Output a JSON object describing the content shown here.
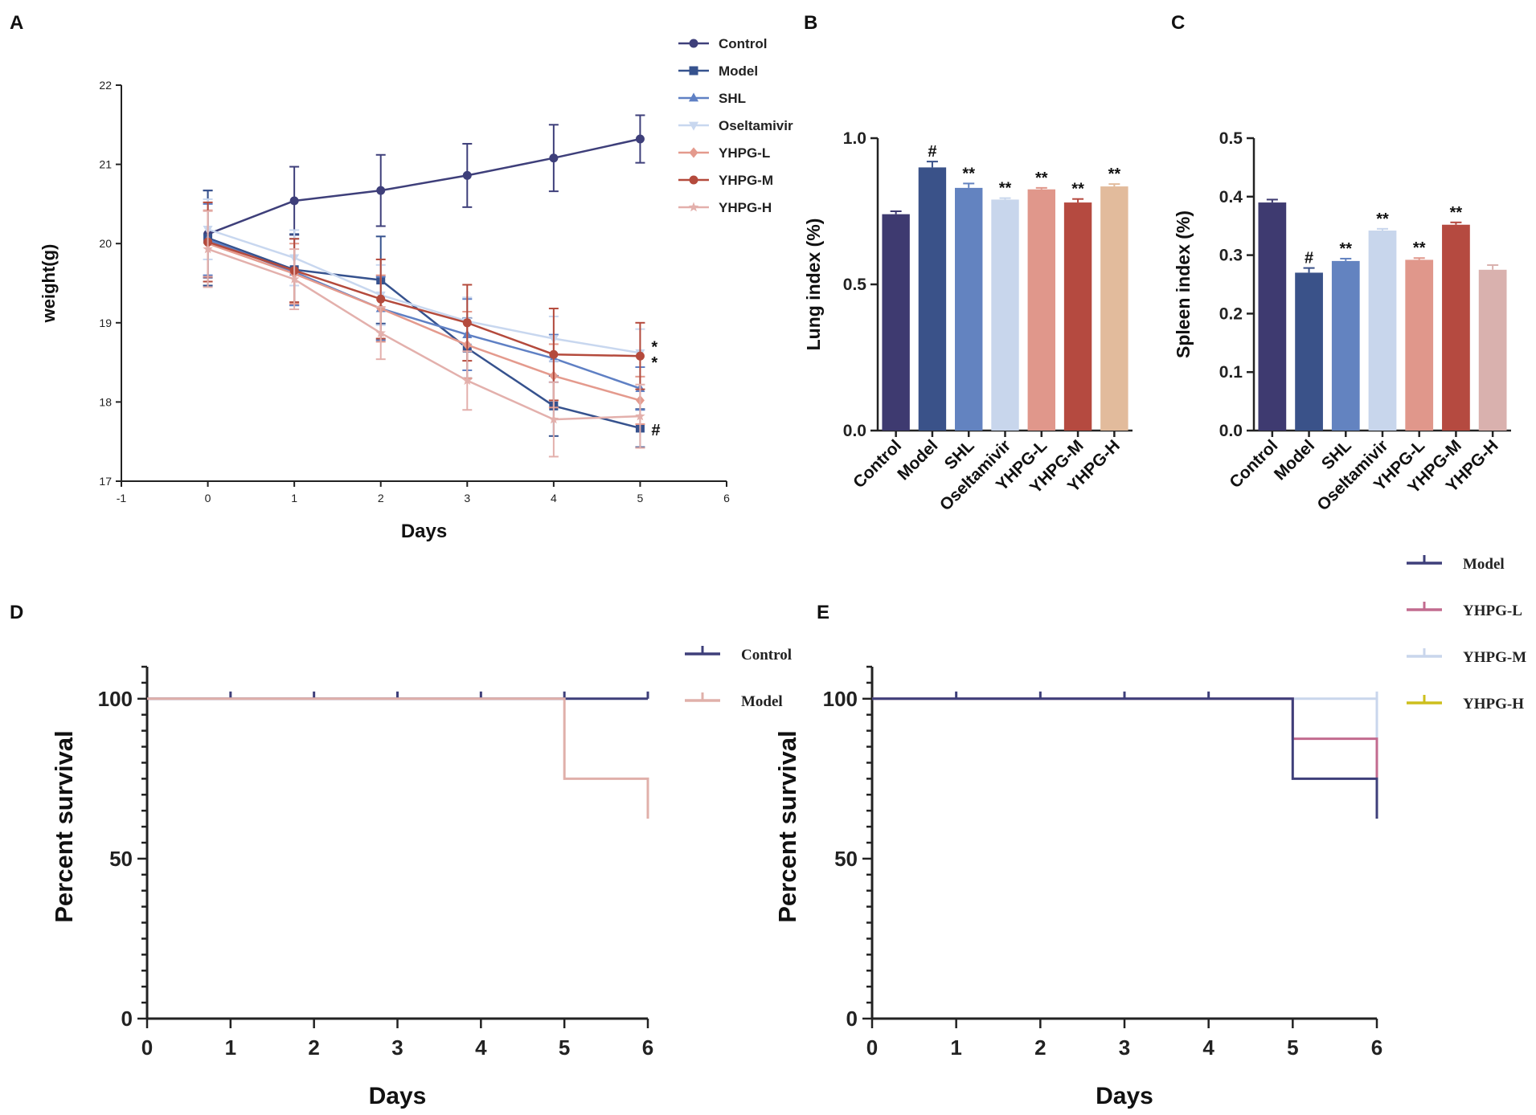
{
  "chart_data": [
    {
      "panel": "A",
      "type": "line",
      "title": "",
      "xlabel": "Days",
      "ylabel": "weight(g)",
      "xlim": [
        -1,
        6
      ],
      "ylim": [
        17,
        22
      ],
      "xticks": [
        "-1",
        "0",
        "1",
        "2",
        "3",
        "4",
        "5",
        "6"
      ],
      "yticks": [
        "17",
        "18",
        "19",
        "20",
        "21",
        "22"
      ],
      "x": [
        0,
        1,
        2,
        3,
        4,
        5
      ],
      "series": [
        {
          "name": "Control",
          "color": "#3e3f7a",
          "marker": "circle",
          "values": [
            20.12,
            20.54,
            20.67,
            20.86,
            21.08,
            21.32
          ],
          "errors": [
            0.55,
            0.43,
            0.45,
            0.4,
            0.42,
            0.3
          ]
        },
        {
          "name": "Model",
          "color": "#36528e",
          "marker": "square",
          "values": [
            20.07,
            19.67,
            19.54,
            18.68,
            17.95,
            17.67
          ],
          "errors": [
            0.6,
            0.45,
            0.55,
            0.38,
            0.38,
            0.24
          ]
        },
        {
          "name": "SHL",
          "color": "#5f80c4",
          "marker": "triangle",
          "values": [
            20.05,
            19.64,
            19.18,
            18.85,
            18.55,
            18.17
          ],
          "errors": [
            0.45,
            0.42,
            0.4,
            0.45,
            0.3,
            0.27
          ]
        },
        {
          "name": "Oseltamivir",
          "color": "#c8d7ef",
          "marker": "triangle-down",
          "values": [
            20.18,
            19.82,
            19.35,
            19.02,
            18.8,
            18.62
          ],
          "errors": [
            0.38,
            0.35,
            0.38,
            0.3,
            0.28,
            0.3
          ]
        },
        {
          "name": "YHPG-L",
          "color": "#e49a8d",
          "marker": "diamond",
          "values": [
            20.0,
            19.62,
            19.18,
            18.72,
            18.33,
            18.02
          ],
          "errors": [
            0.42,
            0.38,
            0.42,
            0.42,
            0.4,
            0.3
          ]
        },
        {
          "name": "YHPG-M",
          "color": "#b44a3c",
          "marker": "circle",
          "values": [
            20.02,
            19.66,
            19.3,
            19.0,
            18.6,
            18.58
          ],
          "errors": [
            0.5,
            0.4,
            0.5,
            0.48,
            0.58,
            0.42
          ]
        },
        {
          "name": "YHPG-H",
          "color": "#e3b0ac",
          "marker": "star",
          "values": [
            19.93,
            19.55,
            18.87,
            18.27,
            17.78,
            17.82
          ],
          "errors": [
            0.48,
            0.38,
            0.33,
            0.37,
            0.47,
            0.4
          ]
        }
      ],
      "annotations": [
        {
          "text": "*",
          "x": 5,
          "y": 18.72
        },
        {
          "text": "*",
          "x": 5,
          "y": 18.52
        },
        {
          "text": "#",
          "x": 5,
          "y": 17.67
        }
      ],
      "legend": "top-right"
    },
    {
      "panel": "B",
      "type": "bar",
      "ylabel": "Lung index (%)",
      "ylim": [
        0,
        1.0
      ],
      "yticks": [
        "0.0",
        "0.5",
        "1.0"
      ],
      "categories": [
        "Control",
        "Model",
        "SHL",
        "Oseltamivir",
        "YHPG-L",
        "YHPG-M",
        "YHPG-H"
      ],
      "values": [
        0.74,
        0.9,
        0.83,
        0.79,
        0.825,
        0.78,
        0.835
      ],
      "errors": [
        0.01,
        0.02,
        0.015,
        0.005,
        0.005,
        0.012,
        0.008
      ],
      "colors": [
        "#3e3a70",
        "#3a5289",
        "#6383c0",
        "#c8d6ec",
        "#e0978b",
        "#b54a40",
        "#e2bb9c"
      ],
      "labels": [
        "",
        "#",
        "**",
        "**",
        "**",
        "**",
        "**"
      ]
    },
    {
      "panel": "C",
      "type": "bar",
      "ylabel": "Spleen index (%)",
      "ylim": [
        0,
        0.5
      ],
      "yticks": [
        "0.0",
        "0.1",
        "0.2",
        "0.3",
        "0.4",
        "0.5"
      ],
      "categories": [
        "Control",
        "Model",
        "SHL",
        "Oseltamivir",
        "YHPG-L",
        "YHPG-M",
        "YHPG-H"
      ],
      "values": [
        0.39,
        0.27,
        0.29,
        0.342,
        0.292,
        0.352,
        0.275
      ],
      "errors": [
        0.005,
        0.008,
        0.004,
        0.003,
        0.003,
        0.004,
        0.008
      ],
      "colors": [
        "#3e3a70",
        "#3a5289",
        "#6383c0",
        "#c8d6ec",
        "#e0978b",
        "#b54a40",
        "#d9b1ae"
      ],
      "labels": [
        "",
        "#",
        "**",
        "**",
        "**",
        "**",
        ""
      ]
    },
    {
      "panel": "D",
      "type": "line",
      "subtype": "survival",
      "xlabel": "Days",
      "ylabel": "Percent survival",
      "xlim": [
        0,
        6
      ],
      "ylim": [
        0,
        110
      ],
      "xticks": [
        "0",
        "1",
        "2",
        "3",
        "4",
        "5",
        "6"
      ],
      "yticks": [
        "0",
        "50",
        "100"
      ],
      "series": [
        {
          "name": "Control",
          "color": "#3e3f7a",
          "steps": [
            [
              0,
              100
            ],
            [
              6,
              100
            ]
          ],
          "censor": [
            1,
            2,
            3,
            4,
            5,
            6
          ]
        },
        {
          "name": "Model",
          "color": "#e0b0aa",
          "steps": [
            [
              0,
              100
            ],
            [
              5,
              100
            ],
            [
              5,
              75
            ],
            [
              6,
              75
            ],
            [
              6,
              62.5
            ]
          ],
          "censor": []
        }
      ],
      "legend": "top-right"
    },
    {
      "panel": "E",
      "type": "line",
      "subtype": "survival",
      "xlabel": "Days",
      "ylabel": "Percent survival",
      "xlim": [
        0,
        6
      ],
      "ylim": [
        0,
        110
      ],
      "xticks": [
        "0",
        "1",
        "2",
        "3",
        "4",
        "5",
        "6"
      ],
      "yticks": [
        "0",
        "50",
        "100"
      ],
      "series": [
        {
          "name": "YHPG-M",
          "color": "#c9d6ec",
          "steps": [
            [
              0,
              100
            ],
            [
              6,
              100
            ],
            [
              6,
              87.5
            ]
          ],
          "censor": [
            6
          ]
        },
        {
          "name": "YHPG-L",
          "color": "#c26b8f",
          "steps": [
            [
              0,
              100
            ],
            [
              5,
              100
            ],
            [
              5,
              87.5
            ],
            [
              6,
              87.5
            ],
            [
              6,
              75
            ]
          ],
          "censor": []
        },
        {
          "name": "Model",
          "color": "#3e3f7a",
          "steps": [
            [
              0,
              100
            ],
            [
              5,
              100
            ],
            [
              5,
              75
            ],
            [
              6,
              75
            ],
            [
              6,
              62.5
            ]
          ],
          "censor": [
            1,
            2,
            3,
            4
          ]
        },
        {
          "name": "YHPG-H",
          "color": "#cdbf1d",
          "steps": [],
          "censor": []
        }
      ],
      "legend_order": [
        "Model",
        "YHPG-L",
        "YHPG-M",
        "YHPG-H"
      ],
      "legend": "top-right"
    }
  ]
}
